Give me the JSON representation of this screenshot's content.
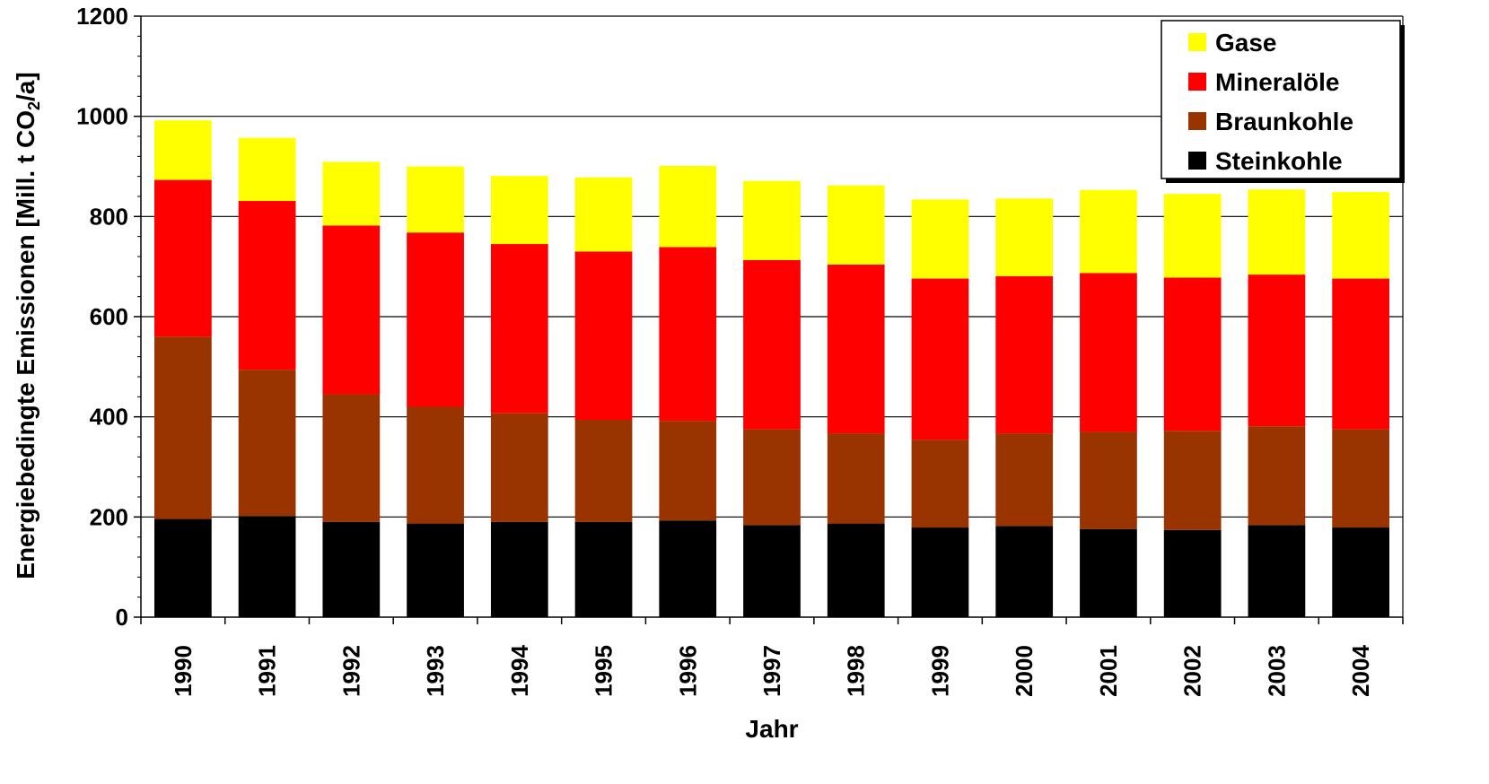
{
  "chart_data": {
    "type": "bar",
    "stacked": true,
    "title": "",
    "xlabel": "Jahr",
    "ylabel_parts": [
      "Energiebedingte Emissionen [Mill. t CO",
      "2",
      "/a]"
    ],
    "ylim": [
      0,
      1200
    ],
    "yticks": [
      0,
      200,
      400,
      600,
      800,
      1000,
      1200
    ],
    "grid": true,
    "legend_position": "top-right",
    "categories": [
      "1990",
      "1991",
      "1992",
      "1993",
      "1994",
      "1995",
      "1996",
      "1997",
      "1998",
      "1999",
      "2000",
      "2001",
      "2002",
      "2003",
      "2004"
    ],
    "series": [
      {
        "name": "Steinkohle",
        "color": "#000000",
        "values": [
          196,
          202,
          190,
          187,
          190,
          190,
          193,
          184,
          187,
          179,
          182,
          176,
          174,
          184,
          179
        ]
      },
      {
        "name": "Braunkohle",
        "color": "#993300",
        "values": [
          364,
          292,
          255,
          233,
          217,
          204,
          199,
          191,
          180,
          175,
          185,
          194,
          198,
          197,
          196
        ]
      },
      {
        "name": "Mineralöle",
        "color": "#ff0000",
        "values": [
          313,
          337,
          337,
          348,
          338,
          336,
          347,
          338,
          337,
          322,
          314,
          317,
          306,
          303,
          301
        ]
      },
      {
        "name": "Gase",
        "color": "#ffff00",
        "values": [
          119,
          126,
          127,
          132,
          136,
          148,
          162,
          158,
          158,
          158,
          155,
          166,
          167,
          170,
          173
        ]
      }
    ],
    "legend_order": [
      "Gase",
      "Mineralöle",
      "Braunkohle",
      "Steinkohle"
    ]
  }
}
